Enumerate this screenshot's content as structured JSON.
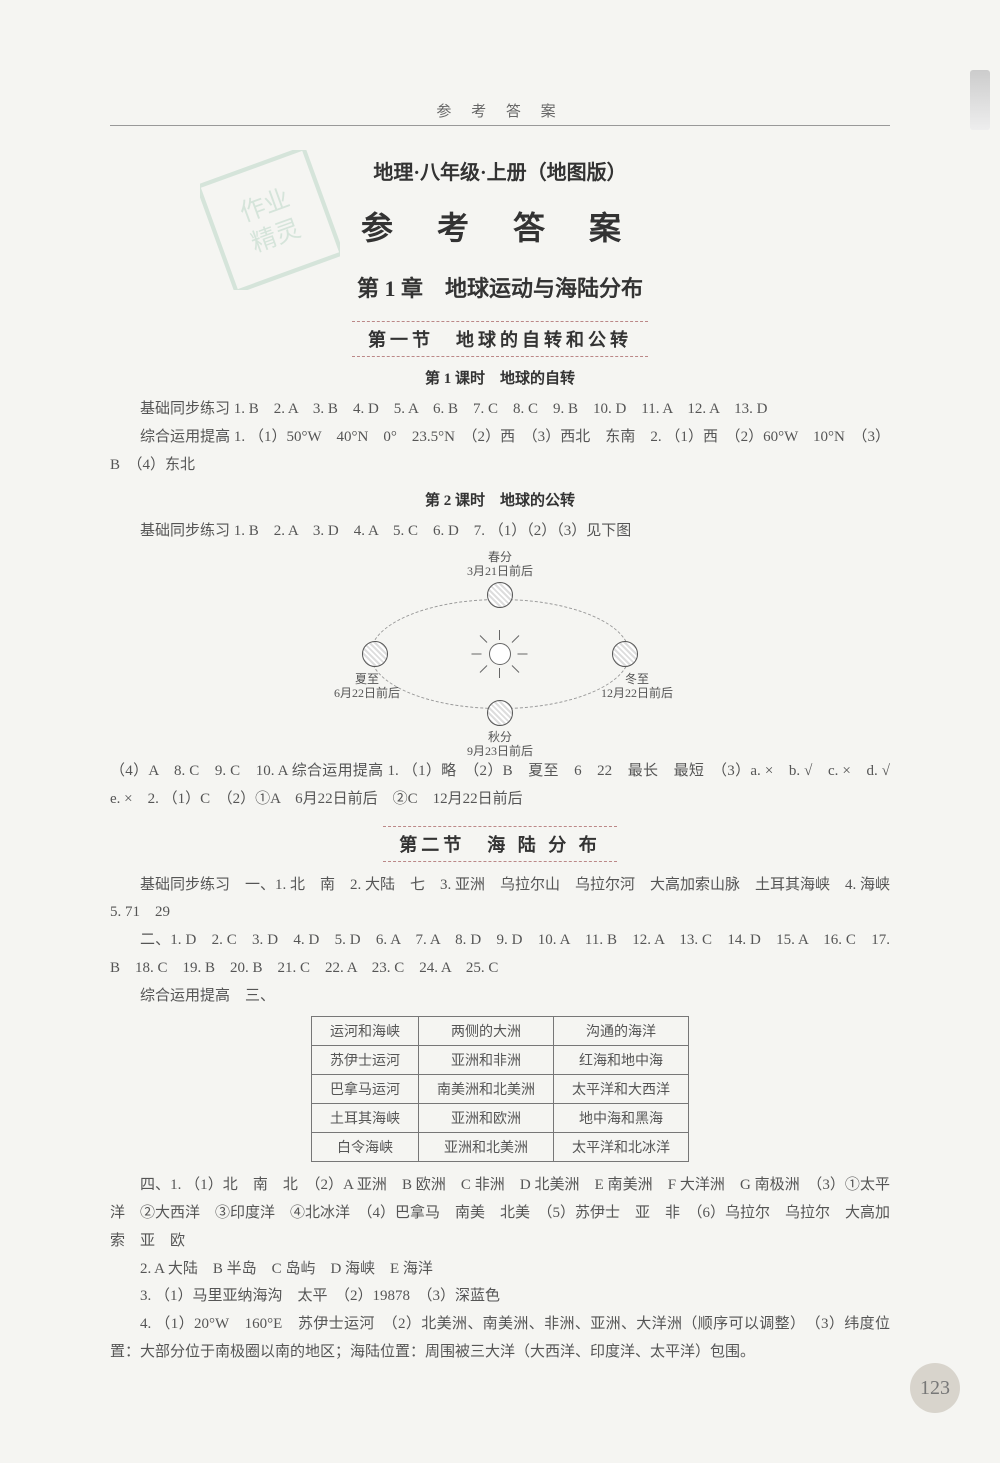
{
  "top_header": "参 考 答 案",
  "book_title": "地理·八年级·上册（地图版）",
  "main_title": "参 考 答 案",
  "chapter_title": "第 1 章　地球运动与海陆分布",
  "section1_title": "第一节　地球的自转和公转",
  "lesson1_title": "第 1 课时　地球的自转",
  "lesson1_basic": "基础同步练习 1. B　2. A　3. B　4. D　5. A　6. B　7. C　8. C　9. B　10. D　11. A　12. A　13. D",
  "lesson1_adv": "综合运用提高 1. （1）50°W　40°N　0°　23.5°N　（2）西　（3）西北　东南　2. （1）西　（2）60°W　10°N　（3）B　（4）东北",
  "lesson2_title": "第 2 课时　地球的公转",
  "lesson2_basic": "基础同步练习 1. B　2. A　3. D　4. A　5. C　6. D　7. （1）（2）（3）见下图",
  "diagram": {
    "spring": "春分\n3月21日前后",
    "summer": "夏至\n6月22日前后",
    "autumn": "秋分\n9月23日前后",
    "winter": "冬至\n12月22日前后"
  },
  "lesson2_after": "（4）A　8. C　9. C　10. A 综合运用提高 1. （1）略　（2）B　夏至　6　22　最长　最短　（3）a. ×　b. √　c. ×　d. √　e. ×　2. （1）C　（2）①A　6月22日前后　②C　12月22日前后",
  "section2_title": "第二节　海 陆 分 布",
  "sec2_basic": "基础同步练习　一、1. 北　南　2. 大陆　七　3. 亚洲　乌拉尔山　乌拉尔河　大高加索山脉　土耳其海峡　4. 海峡　5. 71　29",
  "sec2_mc": "二、1. D　2. C　3. D　4. D　5. D　6. A　7. A　8. D　9. D　10. A　11. B　12. A　13. C　14. D　15. A　16. C　17. B　18. C　19. B　20. B　21. C　22. A　23. C　24. A　25. C",
  "sec2_adv_label": "综合运用提高　三、",
  "table": {
    "headers": [
      "运河和海峡",
      "两侧的大洲",
      "沟通的海洋"
    ],
    "rows": [
      [
        "苏伊士运河",
        "亚洲和非洲",
        "红海和地中海"
      ],
      [
        "巴拿马运河",
        "南美洲和北美洲",
        "太平洋和大西洋"
      ],
      [
        "土耳其海峡",
        "亚洲和欧洲",
        "地中海和黑海"
      ],
      [
        "白令海峡",
        "亚洲和北美洲",
        "太平洋和北冰洋"
      ]
    ]
  },
  "sec2_four": "四、1. （1）北　南　北　（2）A 亚洲　B 欧洲　C 非洲　D 北美洲　E 南美洲　F 大洋洲　G 南极洲　（3）①太平洋　②大西洋　③印度洋　④北冰洋　（4）巴拿马　南美　北美　（5）苏伊士　亚　非　（6）乌拉尔　乌拉尔　大高加索　亚　欧",
  "sec2_q2": "2. A 大陆　B 半岛　C 岛屿　D 海峡　E 海洋",
  "sec2_q3": "3. （1）马里亚纳海沟　太平　（2）19878　（3）深蓝色",
  "sec2_q4": "4. （1）20°W　160°E　苏伊士运河　（2）北美洲、南美洲、非洲、亚洲、大洋洲（顺序可以调整）　（3）纬度位置：大部分位于南极圈以南的地区；海陆位置：周围被三大洋（大西洋、印度洋、太平洋）包围。",
  "page_num": "123"
}
